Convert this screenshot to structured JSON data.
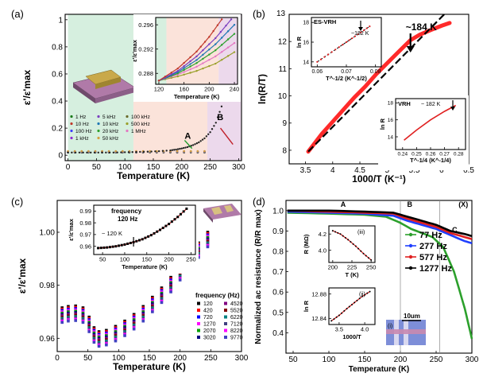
{
  "figure": {
    "panels": [
      "(a)",
      "(b)",
      "(c)",
      "(d)"
    ]
  },
  "chart_data": [
    {
      "id": "a",
      "type": "scatter",
      "panel_label": "(a)",
      "xlabel": "Temperature (K)",
      "ylabel": "ε'/ε'max",
      "xlim": [
        -5,
        305
      ],
      "ylim": [
        -0.04,
        1.04
      ],
      "xticks": [
        0,
        50,
        100,
        150,
        200,
        250,
        300
      ],
      "yticks": [
        0.0,
        0.2,
        0.4,
        0.6,
        0.8,
        1.0
      ],
      "regions": [
        {
          "name": "A",
          "from": 0,
          "to": 115,
          "color": "#d6efdf"
        },
        {
          "name": "A",
          "from": 115,
          "to": 245,
          "color": "#fbe3da"
        },
        {
          "name": "B",
          "from": 245,
          "to": 305,
          "color": "#ecd9ec"
        }
      ],
      "annotations": [
        {
          "text": "A",
          "x": 205,
          "y": 0.12,
          "color": "#1d9a2a"
        },
        {
          "text": "B",
          "x": 262,
          "y": 0.26,
          "color": "#c0202a"
        }
      ],
      "legend": [
        "1 Hz",
        "5 kHz",
        "100 kHz",
        "10 Hz",
        "10 kHz",
        "500 kHz",
        "100 Hz",
        "20 kHz",
        "1 MHz",
        "1 kHz",
        "50 kHz"
      ],
      "legend_colors": [
        "#1a7a1a",
        "#7a3fbf",
        "#6a6a2a",
        "#c0392b",
        "#1f77b4",
        "#9aa02a",
        "#3b3bff",
        "#2ca02c",
        "#e377c2",
        "#8c2bd1",
        "#d2a040"
      ],
      "series_main": {
        "name": "1 Hz",
        "x": [
          0,
          20,
          40,
          60,
          80,
          100,
          120,
          140,
          160,
          180,
          190,
          200,
          210,
          220,
          230,
          240,
          250,
          260,
          270,
          280,
          290,
          300
        ],
        "y": [
          0.02,
          0.02,
          0.02,
          0.02,
          0.02,
          0.022,
          0.024,
          0.026,
          0.03,
          0.036,
          0.042,
          0.05,
          0.06,
          0.075,
          0.095,
          0.125,
          0.17,
          0.24,
          0.36,
          0.55,
          0.8,
          1.0
        ]
      },
      "inset": {
        "xlabel": "Temperature (K)",
        "ylabel": "ε'/ε'max",
        "xlim": [
          115,
          245
        ],
        "ylim": [
          0.2862,
          0.2972
        ],
        "xticks": [
          120,
          160,
          200,
          240
        ],
        "yticks": [
          0.288,
          0.292,
          0.296
        ],
        "ytick_labels": [
          "0.288",
          "0.292",
          "0.296"
        ],
        "series": [
          {
            "name": "1 Hz",
            "color": "#9aa02a",
            "x": [
              120,
              150,
              180,
              210,
              240
            ],
            "y": [
              0.2868,
              0.2875,
              0.2884,
              0.2896,
              0.2915
            ]
          },
          {
            "name": "10 Hz",
            "color": "#e377c2",
            "x": [
              120,
              150,
              180,
              210,
              240
            ],
            "y": [
              0.2868,
              0.2878,
              0.2891,
              0.2908,
              0.293
            ]
          },
          {
            "name": "100 Hz",
            "color": "#2ca02c",
            "x": [
              120,
              150,
              180,
              210,
              240
            ],
            "y": [
              0.2868,
              0.288,
              0.2897,
              0.2918,
              0.2945
            ]
          },
          {
            "name": "1 kHz",
            "color": "#1f77b4",
            "x": [
              120,
              150,
              180,
              210,
              240
            ],
            "y": [
              0.2868,
              0.2882,
              0.2902,
              0.2928,
              0.296
            ]
          },
          {
            "name": "10 kHz",
            "color": "#7a3fbf",
            "x": [
              120,
              150,
              180,
              210,
              235
            ],
            "y": [
              0.2868,
              0.2884,
              0.2908,
              0.2938,
              0.2969
            ]
          },
          {
            "name": "100 kHz",
            "color": "#c0392b",
            "x": [
              120,
              150,
              180,
              200,
              220
            ],
            "y": [
              0.2868,
              0.2888,
              0.2916,
              0.294,
              0.2969
            ]
          }
        ]
      }
    },
    {
      "id": "b",
      "type": "line",
      "panel_label": "(b)",
      "xlabel": "1000/T (K⁻¹)",
      "ylabel": "ln(R/T)",
      "xlim": [
        3.2,
        6.5
      ],
      "ylim": [
        7.5,
        13.0
      ],
      "xticks": [
        3.5,
        4.0,
        4.5,
        5.0,
        5.5,
        6.0,
        6.5
      ],
      "yticks": [
        8,
        9,
        10,
        11,
        12
      ],
      "ytop_label": "13",
      "annotation": {
        "text": "~184 K",
        "x": 5.43
      },
      "series": [
        {
          "name": "data",
          "color": "#ff2a2a",
          "x": [
            3.55,
            3.8,
            4.0,
            4.2,
            4.4,
            4.6,
            4.8,
            5.0,
            5.2,
            5.43,
            5.6,
            5.8,
            6.0,
            6.15
          ],
          "y": [
            7.95,
            8.6,
            9.05,
            9.5,
            9.95,
            10.35,
            10.8,
            11.2,
            11.6,
            12.05,
            12.25,
            12.42,
            12.58,
            12.68
          ]
        },
        {
          "name": "fit",
          "color": "#000000",
          "x": [
            3.55,
            6.05
          ],
          "y": [
            7.95,
            13.0
          ]
        }
      ],
      "inset_top": {
        "title": "ES-VRH",
        "annotation": "~182 K",
        "xlabel": "T^-1/2 (K^-1/2)",
        "ylabel": "ln R",
        "xlim": [
          0.058,
          0.082
        ],
        "ylim": [
          13.5,
          18.5
        ],
        "xticks": [
          0.06,
          0.07,
          0.08
        ],
        "xtick_labels": [
          "0.06",
          "0.07",
          "0.08"
        ],
        "yticks": [
          14,
          16,
          18
        ],
        "x": [
          0.06,
          0.065,
          0.07,
          0.074,
          0.078
        ],
        "y": [
          14.0,
          15.0,
          16.0,
          16.8,
          17.6
        ]
      },
      "inset_bottom": {
        "title": "VRH",
        "annotation": "~ 182 K",
        "xlabel": "T^-1/4 (K^-1/4)",
        "ylabel": "ln R",
        "xlim": [
          0.235,
          0.285
        ],
        "ylim": [
          12.5,
          18.5
        ],
        "xticks": [
          0.24,
          0.25,
          0.26,
          0.27,
          0.28
        ],
        "xtick_labels": [
          "0.24",
          "0.25",
          "0.26",
          "0.27",
          "0.28"
        ],
        "yticks": [
          14,
          16,
          18
        ],
        "x": [
          0.241,
          0.25,
          0.26,
          0.27,
          0.278
        ],
        "y": [
          13.6,
          14.8,
          16.0,
          17.0,
          17.7
        ]
      }
    },
    {
      "id": "c",
      "type": "scatter",
      "panel_label": "(c)",
      "xlabel": "Temperature (K)",
      "ylabel": "ε'/ε'max",
      "xlim": [
        0,
        300
      ],
      "ylim": [
        0.955,
        1.012
      ],
      "xticks": [
        0,
        50,
        100,
        150,
        200,
        250,
        300
      ],
      "yticks": [
        0.96,
        0.98,
        1.0
      ],
      "ytick_labels": [
        "0.96",
        "0.98",
        "1.00"
      ],
      "legend_title": "frequency (Hz)",
      "legend": [
        "120",
        "420",
        "720",
        "1270",
        "2070",
        "3020",
        "4520",
        "5520",
        "6220",
        "7120",
        "8220",
        "9770"
      ],
      "legend_colors": [
        "#000000",
        "#ff0000",
        "#0000ff",
        "#ff00ff",
        "#00a000",
        "#000080",
        "#800080",
        "#800000",
        "#008080",
        "#404080",
        "#ff00ff",
        "#4040c0"
      ],
      "base_x": [
        8,
        18,
        30,
        42,
        52,
        60,
        68,
        80,
        95,
        110,
        125,
        140,
        155,
        170,
        185,
        200,
        215,
        230,
        245
      ],
      "base_y": [
        0.9715,
        0.972,
        0.9722,
        0.9715,
        0.968,
        0.964,
        0.9625,
        0.963,
        0.9645,
        0.9665,
        0.969,
        0.972,
        0.9755,
        0.979,
        0.983,
        0.9875,
        0.992,
        0.996,
        1.0
      ],
      "series_offsets": [
        0.0,
        -0.0005,
        -0.001,
        -0.0015,
        -0.002,
        -0.0025,
        -0.003,
        -0.0035,
        -0.004,
        -0.0045,
        -0.005,
        -0.0055
      ],
      "inset": {
        "title": "frequency",
        "subtitle": "120 Hz",
        "annotation": "~ 120 K",
        "xlabel": "Temperature (K)",
        "ylabel": "ε'/ε'max",
        "xlim": [
          30,
          260
        ],
        "ylim": [
          0.953,
          0.995
        ],
        "xticks": [
          50,
          100,
          150,
          200,
          250
        ],
        "yticks": [
          0.96,
          0.97,
          0.98,
          0.99
        ],
        "ytick_labels": [
          "0.96",
          "0.97",
          "0.98",
          "0.99"
        ],
        "x": [
          40,
          60,
          80,
          100,
          120,
          140,
          160,
          180,
          200,
          220,
          240
        ],
        "y": [
          0.9585,
          0.959,
          0.96,
          0.9615,
          0.9635,
          0.966,
          0.9695,
          0.974,
          0.979,
          0.985,
          0.992
        ]
      }
    },
    {
      "id": "d",
      "type": "line",
      "panel_label": "(d)",
      "xlabel": "Temperature (K)",
      "ylabel": "Normalized ac resistance (R/R max)",
      "xlim": [
        40,
        300
      ],
      "ylim": [
        0.3,
        1.05
      ],
      "xticks": [
        50,
        100,
        150,
        200,
        250,
        300
      ],
      "yticks": [
        0.4,
        0.5,
        0.6,
        0.7,
        0.8,
        0.9,
        1.0
      ],
      "ytick_labels": [
        "0.4",
        "0.5",
        "0.6",
        "0.7",
        "0.8",
        "0.9",
        "1.0"
      ],
      "region_labels": [
        {
          "text": "A",
          "x": 120
        },
        {
          "text": "B",
          "x": 213
        },
        {
          "text": "C",
          "x": 276
        },
        {
          "text": "(X)",
          "x": 288
        }
      ],
      "series": [
        {
          "name": "77 Hz",
          "color": "#2ca02c",
          "x": [
            42,
            100,
            150,
            180,
            200,
            215,
            230,
            245,
            260,
            275,
            290,
            300
          ],
          "y": [
            0.99,
            0.985,
            0.98,
            0.97,
            0.94,
            0.91,
            0.89,
            0.87,
            0.82,
            0.7,
            0.52,
            0.37
          ]
        },
        {
          "name": "277 Hz",
          "color": "#1f3fff",
          "x": [
            42,
            100,
            150,
            190,
            210,
            230,
            250,
            270,
            290,
            300
          ],
          "y": [
            0.995,
            0.99,
            0.985,
            0.975,
            0.95,
            0.93,
            0.91,
            0.88,
            0.85,
            0.84
          ]
        },
        {
          "name": "577 Hz",
          "color": "#e02020",
          "x": [
            42,
            100,
            150,
            190,
            210,
            230,
            250,
            270,
            290,
            300
          ],
          "y": [
            1.0,
            0.995,
            0.99,
            0.985,
            0.96,
            0.94,
            0.92,
            0.89,
            0.87,
            0.86
          ]
        },
        {
          "name": "1277 Hz",
          "color": "#000000",
          "x": [
            42,
            100,
            150,
            190,
            210,
            230,
            250,
            270,
            290,
            300
          ],
          "y": [
            1.0,
            1.0,
            0.995,
            0.99,
            0.97,
            0.95,
            0.93,
            0.9,
            0.885,
            0.875
          ]
        }
      ],
      "inset_iii": {
        "tag": "(iii)",
        "xlabel": "T (K)",
        "ylabel": "R (MΩ)",
        "xlim": [
          195,
          255
        ],
        "ylim": [
          3.85,
          4.3
        ],
        "xticks": [
          200,
          225,
          250
        ],
        "yticks": [
          4.0,
          4.2
        ],
        "ytick_labels": [
          "4.0",
          "4.2"
        ],
        "x": [
          200,
          210,
          220,
          230,
          240,
          250
        ],
        "y": [
          4.24,
          4.2,
          4.13,
          4.05,
          3.96,
          3.88
        ]
      },
      "inset_ii": {
        "tag": "(ii)",
        "xlabel": "1000/T",
        "ylabel": "ln R",
        "xlim": [
          3.3,
          4.2
        ],
        "ylim": [
          12.83,
          12.89
        ],
        "xticks": [
          3.5,
          4.0
        ],
        "xtick_labels": [
          "3.5",
          "4.0"
        ],
        "yticks": [
          12.84,
          12.88
        ],
        "ytick_labels": [
          "12.84",
          "12.88"
        ],
        "x": [
          3.35,
          3.5,
          3.65,
          3.8,
          3.95,
          4.1
        ],
        "y": [
          12.836,
          12.845,
          12.856,
          12.866,
          12.876,
          12.884
        ]
      },
      "inset_i": {
        "tag": "(i)",
        "scale": "10um"
      }
    }
  ]
}
